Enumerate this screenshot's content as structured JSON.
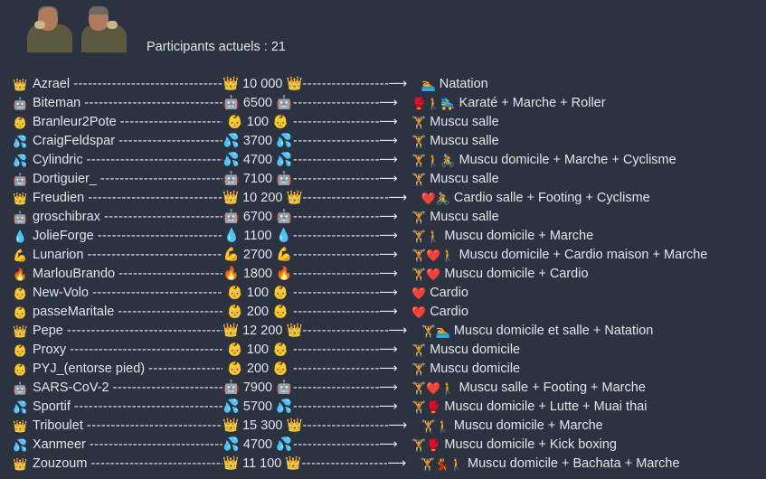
{
  "header": {
    "participants_label": "Participants actuels : 21"
  },
  "separator": "----------------------------------------------",
  "arrow": "⟶",
  "rows": [
    {
      "icon": "👑",
      "name": "Azrael",
      "score": "10 000",
      "activity_icons": "🏊",
      "activity": "Natation"
    },
    {
      "icon": "🤖",
      "name": "Biteman",
      "score": "6500",
      "activity_icons": "🥊🚶🛼",
      "activity": "Karaté + Marche + Roller"
    },
    {
      "icon": "👶",
      "name": "Branleur2Pote",
      "score": "100",
      "activity_icons": "🏋️",
      "activity": "Muscu salle"
    },
    {
      "icon": "💦",
      "name": "CraigFeldspar",
      "score": "3700",
      "activity_icons": "🏋️",
      "activity": "Muscu salle"
    },
    {
      "icon": "💦",
      "name": "Cylindric",
      "score": "4700",
      "activity_icons": "🏋️🚶🚴",
      "activity": "Muscu domicile + Marche + Cyclisme"
    },
    {
      "icon": "🤖",
      "name": "Dortiguier_",
      "score": "7100",
      "activity_icons": "🏋️",
      "activity": "Muscu salle"
    },
    {
      "icon": "👑",
      "name": "Freudien",
      "score": "10 200",
      "activity_icons": "❤️🚴",
      "activity": "Cardio salle + Footing + Cyclisme"
    },
    {
      "icon": "🤖",
      "name": "groschibrax",
      "score": "6700",
      "activity_icons": "🏋️",
      "activity": "Muscu salle"
    },
    {
      "icon": "💧",
      "name": "JolieForge",
      "score": "1100",
      "activity_icons": "🏋️🚶",
      "activity": "Muscu domicile + Marche"
    },
    {
      "icon": "💪",
      "name": "Lunarion",
      "score": "2700",
      "activity_icons": "🏋️❤️🚶",
      "activity": "Muscu domicile + Cardio maison + Marche"
    },
    {
      "icon": "🔥",
      "name": "MarlouBrando",
      "score": "1800",
      "activity_icons": "🏋️❤️",
      "activity": "Muscu domicile + Cardio"
    },
    {
      "icon": "👶",
      "name": "New-Volo",
      "score": "100",
      "activity_icons": "❤️",
      "activity": "Cardio"
    },
    {
      "icon": "👶",
      "name": "passeMaritale",
      "score": "200",
      "activity_icons": "❤️",
      "activity": "Cardio"
    },
    {
      "icon": "👑",
      "name": "Pepe",
      "score": "12 200",
      "activity_icons": "🏋️🏊",
      "activity": "Muscu domicile et salle + Natation"
    },
    {
      "icon": "👶",
      "name": "Proxy",
      "score": "100",
      "activity_icons": "🏋️",
      "activity": "Muscu domicile"
    },
    {
      "icon": "👶",
      "name": "PYJ_(entorse pied)",
      "score": "200",
      "activity_icons": "🏋️",
      "activity": "Muscu domicile"
    },
    {
      "icon": "🤖",
      "name": "SARS-CoV-2",
      "score": "7900",
      "activity_icons": "🏋️❤️🚶",
      "activity": "Muscu salle + Footing + Marche"
    },
    {
      "icon": "💦",
      "name": "Sportif",
      "score": "5700",
      "activity_icons": "🏋️🥊",
      "activity": "Muscu domicile + Lutte + Muai thai"
    },
    {
      "icon": "👑",
      "name": "Triboulet",
      "score": "15 300",
      "activity_icons": "🏋️🚶",
      "activity": "Muscu domicile + Marche"
    },
    {
      "icon": "💦",
      "name": "Xanmeer",
      "score": "4700",
      "activity_icons": "🏋️🥊",
      "activity": "Muscu domicile + Kick boxing"
    },
    {
      "icon": "👑",
      "name": "Zouzoum",
      "score": "11 100",
      "activity_icons": "🏋️💃🚶",
      "activity": "Muscu domicile + Bachata + Marche"
    }
  ]
}
